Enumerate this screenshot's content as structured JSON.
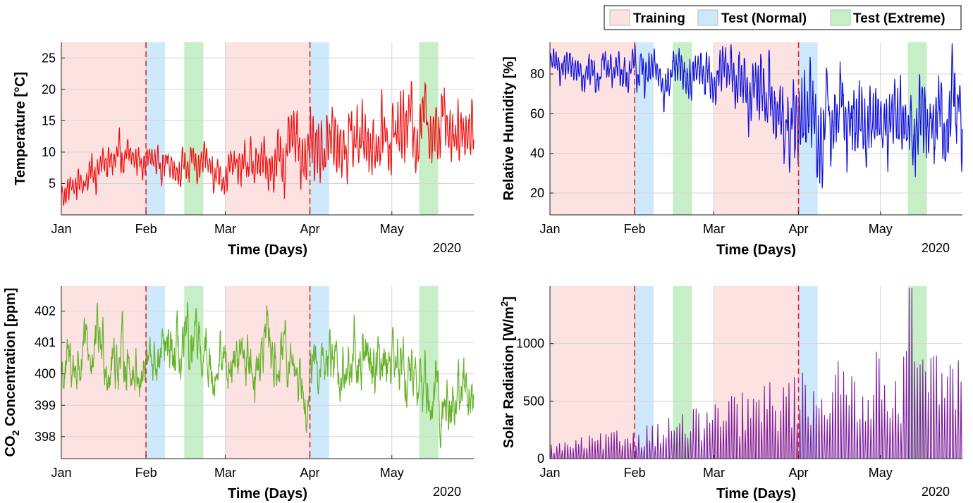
{
  "legend": {
    "placement": "top-right",
    "entries": [
      {
        "label": "Training",
        "color": "#fde2e2"
      },
      {
        "label": "Test (Normal)",
        "color": "#cde9fb"
      },
      {
        "label": "Test (Extreme)",
        "color": "#c7efc7"
      }
    ]
  },
  "chart_data": [
    {
      "type": "line",
      "ylabel": "Temperature [°C]",
      "xlabel": "Time (Days)",
      "year_label": "2020",
      "line_color": "#ee1111",
      "xlim_days": [
        0,
        151
      ],
      "ylim": [
        0,
        27.5
      ],
      "yticks": [
        5,
        10,
        15,
        20,
        25
      ],
      "grid": true,
      "series_sketch": {
        "start_days": [
          0,
          15,
          30,
          45,
          60,
          75,
          90,
          105,
          120,
          135,
          151
        ],
        "level": [
          3,
          8,
          9,
          8,
          7,
          8,
          11,
          12,
          13,
          16,
          14
        ],
        "swing": [
          2,
          2.5,
          2,
          2.5,
          2.5,
          3.5,
          5,
          5,
          5,
          5,
          5
        ]
      }
    },
    {
      "type": "line",
      "ylabel": "Relative Humidity [%]",
      "xlabel": "Time (Days)",
      "year_label": "2020",
      "line_color": "#1010dd",
      "xlim_days": [
        0,
        151
      ],
      "ylim": [
        9,
        96
      ],
      "yticks": [
        20,
        40,
        60,
        80
      ],
      "grid": true,
      "series_sketch": {
        "start_days": [
          0,
          15,
          30,
          45,
          60,
          75,
          90,
          105,
          120,
          135,
          151
        ],
        "level": [
          85,
          82,
          80,
          78,
          80,
          72,
          55,
          55,
          58,
          56,
          60
        ],
        "swing": [
          7,
          8,
          10,
          10,
          10,
          15,
          20,
          20,
          20,
          20,
          20
        ]
      }
    },
    {
      "type": "line",
      "ylabel": "CO2 Concentration [ppm]",
      "xlabel": "Time (Days)",
      "year_label": "2020",
      "line_color": "#66b22a",
      "xlim_days": [
        0,
        151
      ],
      "ylim": [
        397.3,
        402.8
      ],
      "yticks": [
        398,
        399,
        400,
        401,
        402
      ],
      "grid": true,
      "series_sketch": {
        "start_days": [
          0,
          15,
          30,
          45,
          60,
          75,
          90,
          105,
          120,
          135,
          151
        ],
        "level": [
          400,
          400.8,
          400.2,
          400.3,
          400.4,
          400.5,
          400,
          400.2,
          400.8,
          399,
          399.5
        ],
        "swing": [
          1,
          1.2,
          1,
          1.3,
          1,
          1.2,
          1,
          1.2,
          1.3,
          1.2,
          1.5
        ]
      }
    },
    {
      "type": "line",
      "ylabel": "Solar Radiation [W/m2]",
      "xlabel": "Time (Days)",
      "year_label": "2020",
      "line_color": "#7a1a9a",
      "xlim_days": [
        0,
        151
      ],
      "ylim": [
        0,
        1500
      ],
      "yticks": [
        0,
        500,
        1000
      ],
      "grid": true,
      "series_sketch": {
        "start_days": [
          0,
          30,
          60,
          90,
          120,
          151
        ],
        "daily_peak": [
          120,
          250,
          450,
          700,
          850,
          900
        ]
      }
    }
  ],
  "x_axis": {
    "ticks": [
      {
        "label": "Jan",
        "day": 0
      },
      {
        "label": "Feb",
        "day": 31
      },
      {
        "label": "Mar",
        "day": 60
      },
      {
        "label": "Apr",
        "day": 91
      },
      {
        "label": "May",
        "day": 121
      }
    ]
  },
  "periods": [
    {
      "kind": "Training",
      "start_day": 0,
      "end_day": 31
    },
    {
      "kind": "Test (Normal)",
      "start_day": 31,
      "end_day": 38
    },
    {
      "kind": "Test (Extreme)",
      "start_day": 45,
      "end_day": 52
    },
    {
      "kind": "Training",
      "start_day": 60,
      "end_day": 91
    },
    {
      "kind": "Test (Normal)",
      "start_day": 91,
      "end_day": 98
    },
    {
      "kind": "Test (Extreme)",
      "start_day": 131,
      "end_day": 138
    }
  ],
  "split_lines_days": [
    31,
    91
  ],
  "split_line_color": "#ee2222"
}
